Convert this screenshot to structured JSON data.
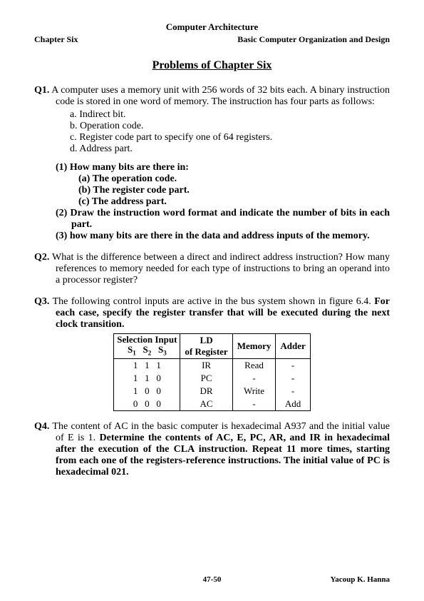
{
  "header": {
    "title": "Computer Architecture",
    "left": "Chapter Six",
    "right": "Basic Computer Organization and Design"
  },
  "mainTitle": "Problems of Chapter Six",
  "q1": {
    "label": "Q1.",
    "intro": "A computer uses a memory unit with 256 words of 32 bits each. A binary instruction code is stored in one word of memory. The instruction has four parts as follows:",
    "a": "a.   Indirect bit.",
    "b": "b.   Operation code.",
    "c": "c.   Register code part to specify one of 64 registers.",
    "d": "d.   Address part.",
    "p1": "(1) How many bits are there in:",
    "p1a": "(a) The operation code.",
    "p1b": "(b) The register code part.",
    "p1c": "(c) The address part.",
    "p2": "(2)   Draw the instruction word format and indicate the number of bits in each part.",
    "p3": "(3) how many bits are there in the data and address inputs of the memory."
  },
  "q2": {
    "label": "Q2.",
    "text": "What is the difference between a direct and indirect address instruction? How many references to memory needed for each type of instructions to bring an operand into a processor register?"
  },
  "q3": {
    "label": "Q3.",
    "intro": "The following control inputs are active in the bus system shown in figure 6.4. ",
    "bold": "For each case, specify the register transfer that will be executed during the next clock transition.",
    "table": {
      "h_sel_top": "Selection Input",
      "h_sel_s1": "S",
      "h_sel_s1sub": "1",
      "h_sel_s2": "S",
      "h_sel_s2sub": "2",
      "h_sel_s3": "S",
      "h_sel_s3sub": "3",
      "h_ld_top": "LD",
      "h_ld_bot": "of Register",
      "h_mem": "Memory",
      "h_add": "Adder",
      "rows": [
        {
          "s1": "1",
          "s2": "1",
          "s3": "1",
          "ld": "IR",
          "mem": "Read",
          "add": "-"
        },
        {
          "s1": "1",
          "s2": "1",
          "s3": "0",
          "ld": "PC",
          "mem": "-",
          "add": "-"
        },
        {
          "s1": "1",
          "s2": "0",
          "s3": "0",
          "ld": "DR",
          "mem": "Write",
          "add": "-"
        },
        {
          "s1": "0",
          "s2": "0",
          "s3": "0",
          "ld": "AC",
          "mem": "-",
          "add": "Add"
        }
      ]
    }
  },
  "q4": {
    "label": "Q4.",
    "plain": "The content of AC in the basic computer is hexadecimal A937 and the initial value of E is 1. ",
    "bold": "Determine the contents of AC, E, PC, AR, and IR in hexadecimal after the execution of the CLA instruction. Repeat 11 more times, starting from each one of the registers-reference instructions. The initial value of PC is hexadecimal 021."
  },
  "footer": {
    "page": "47-50",
    "author": "Yacoup K. Hanna"
  }
}
